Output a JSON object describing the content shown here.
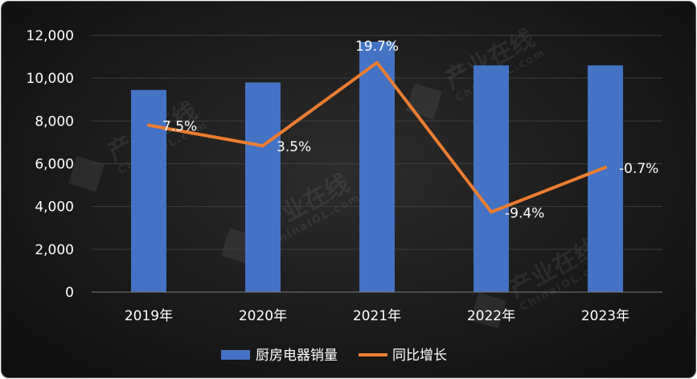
{
  "chart_data": {
    "type": "bar",
    "categories": [
      "2019年",
      "2020年",
      "2021年",
      "2022年",
      "2023年"
    ],
    "ylim": [
      0,
      12000
    ],
    "yticks": [
      "0",
      "2,000",
      "4,000",
      "6,000",
      "8,000",
      "10,000",
      "12,000"
    ],
    "grid": true,
    "legend_position": "bottom",
    "series": [
      {
        "name": "厨房电器销量",
        "type": "bar",
        "color": "#4472c4",
        "values": [
          9450,
          9800,
          11700,
          10600,
          10600
        ]
      },
      {
        "name": "同比增长",
        "type": "line",
        "color": "#ed7d31",
        "axis": "secondary",
        "values": [
          7.5,
          3.5,
          19.7,
          -9.4,
          -0.7
        ],
        "labels": [
          "7.5%",
          "3.5%",
          "19.7%",
          "-9.4%",
          "-0.7%"
        ],
        "range": [
          -25,
          25
        ]
      }
    ],
    "watermark": [
      "产业在线",
      "ChinaIOL.com"
    ]
  }
}
